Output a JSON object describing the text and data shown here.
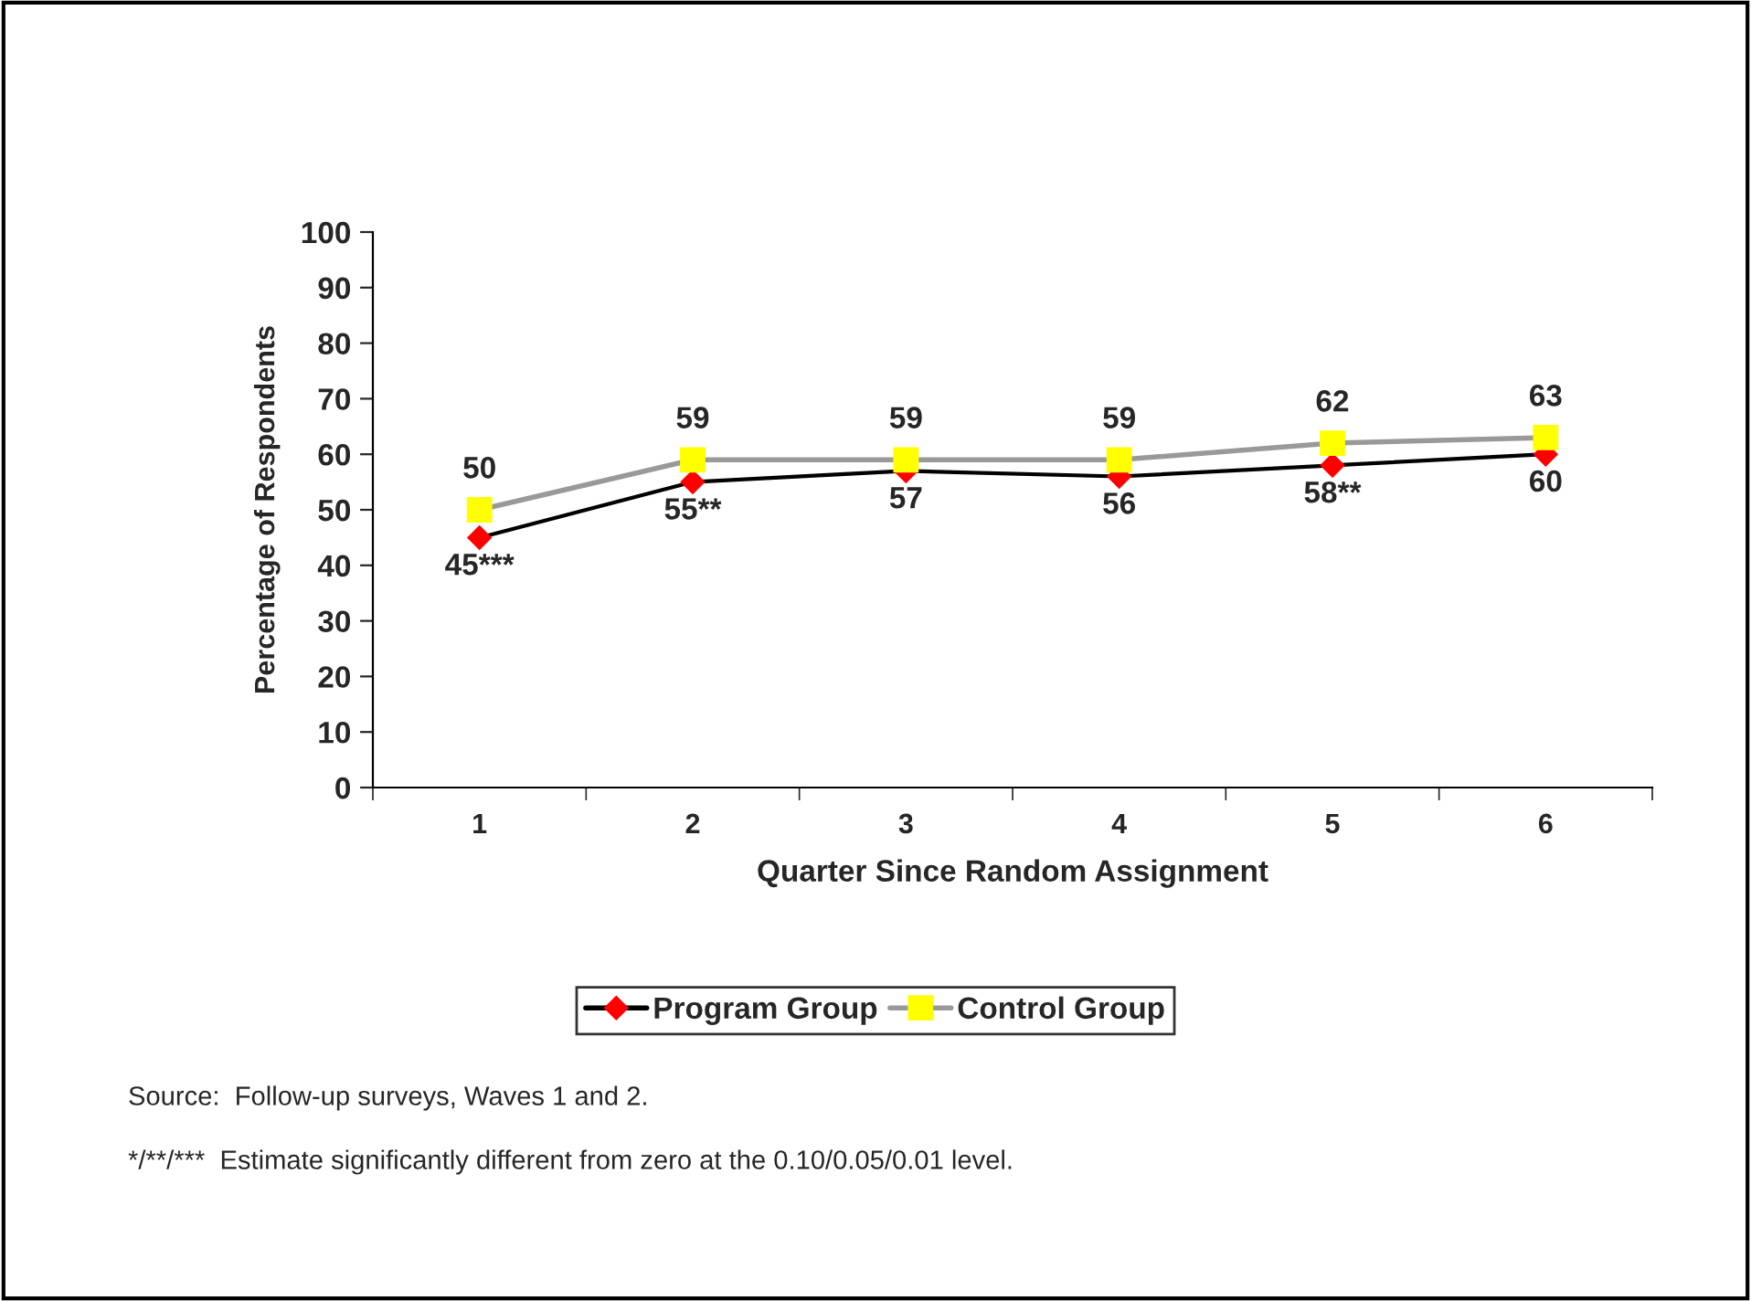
{
  "chart_data": {
    "type": "line",
    "xlabel": "Quarter Since Random Assignment",
    "ylabel": "Percentage of Respondents",
    "categories": [
      "1",
      "2",
      "3",
      "4",
      "5",
      "6"
    ],
    "series": [
      {
        "name": "Program Group",
        "color": "#000000",
        "colors": [
          "#ff0000",
          "#ff0000",
          "#ff0000",
          "#ff0000",
          "#ff0000",
          "#ff0000"
        ],
        "marker": "diamond",
        "values": [
          45,
          55,
          57,
          56,
          58,
          60
        ],
        "value_labels": [
          "45***",
          "55**",
          "57",
          "56",
          "58**",
          "60"
        ]
      },
      {
        "name": "Control Group",
        "color": "#999999",
        "colors": [
          "#ffff00",
          "#ffff00",
          "#ffff00",
          "#ffff00",
          "#ffff00",
          "#ffff00"
        ],
        "marker": "square",
        "values": [
          50,
          59,
          59,
          59,
          62,
          63
        ],
        "value_labels": [
          "50",
          "59",
          "59",
          "59",
          "62",
          "63"
        ]
      }
    ],
    "ylim": [
      0,
      100
    ],
    "yticks": [
      0,
      10,
      20,
      30,
      40,
      50,
      60,
      70,
      80,
      90,
      100
    ],
    "grid": false,
    "legend": "bottom",
    "line_style": "solid",
    "annotations": [
      "Source:  Follow-up surveys, Waves 1 and 2.",
      "*/**/***  Estimate significantly different from zero at the 0.10/0.05/0.01 level."
    ]
  }
}
